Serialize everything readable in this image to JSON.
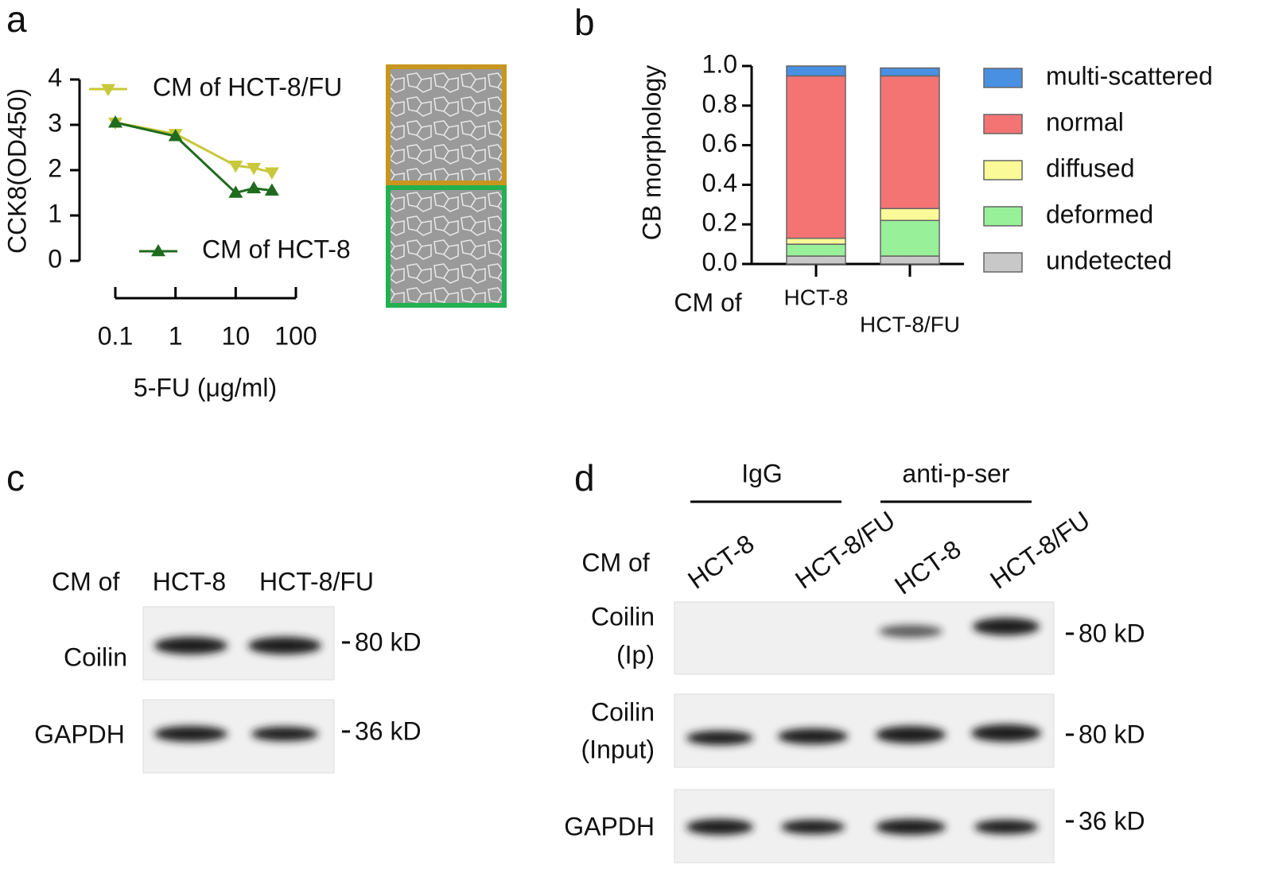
{
  "panel_labels": [
    "a",
    "b",
    "c",
    "d"
  ],
  "chart_data": [
    {
      "type": "line",
      "ylabel": "CCK8(OD450)",
      "xlabel": "5-FU (μg/ml)",
      "xscale": "log",
      "x": [
        0.1,
        1,
        10,
        20,
        40
      ],
      "xlim": [
        0.1,
        100
      ],
      "xticks": [
        0.1,
        1,
        10,
        100
      ],
      "ylim": [
        0,
        4
      ],
      "yticks": [
        0,
        1,
        2,
        3,
        4
      ],
      "series": [
        {
          "name": "CM of HCT-8/FU",
          "color": "#c9c83a",
          "marker": "triangle-down",
          "values": [
            3.05,
            2.8,
            2.1,
            2.05,
            1.95
          ]
        },
        {
          "name": "CM of HCT-8",
          "color": "#1f6b1f",
          "marker": "triangle-up",
          "values": [
            3.05,
            2.75,
            1.5,
            1.6,
            1.55
          ]
        }
      ]
    },
    {
      "type": "stacked_bar",
      "ylabel": "CB morphology",
      "xlabel": "CM of",
      "categories": [
        "HCT-8",
        "HCT-8/FU"
      ],
      "ylim": [
        0,
        1
      ],
      "yticks": [
        {
          "value": 0,
          "label": "0.0"
        },
        0.2,
        0.4,
        0.6,
        0.8,
        {
          "value": 1,
          "label": "1.0"
        }
      ],
      "series": [
        {
          "name": "undetected",
          "color": "#c8c8c8",
          "values": [
            0.04,
            0.04
          ]
        },
        {
          "name": "deformed",
          "color": "#98f098",
          "values": [
            0.06,
            0.18
          ]
        },
        {
          "name": "diffused",
          "color": "#fafa98",
          "values": [
            0.03,
            0.06
          ]
        },
        {
          "name": "normal",
          "color": "#f47474",
          "values": [
            0.82,
            0.67
          ]
        },
        {
          "name": "multi-scattered",
          "color": "#4a90e2",
          "values": [
            0.05,
            0.04
          ]
        }
      ]
    }
  ],
  "blot_c": {
    "header": "CM of",
    "lanes": [
      "HCT-8",
      "HCT-8/FU"
    ],
    "rows": [
      {
        "label": "Coilin",
        "marker": "80 kD"
      },
      {
        "label": "GAPDH",
        "marker": "36 kD"
      }
    ]
  },
  "blot_d": {
    "groups": [
      "IgG",
      "anti-p-ser"
    ],
    "header": "CM of",
    "lanes": [
      "HCT-8",
      "HCT-8/FU",
      "HCT-8",
      "HCT-8/FU"
    ],
    "rows": [
      {
        "label": [
          "Coilin",
          "(Ip)"
        ],
        "marker": "80 kD"
      },
      {
        "label": [
          "Coilin",
          "(Input)"
        ],
        "marker": "80 kD"
      },
      {
        "label": [
          "GAPDH"
        ],
        "marker": "36 kD"
      }
    ]
  }
}
